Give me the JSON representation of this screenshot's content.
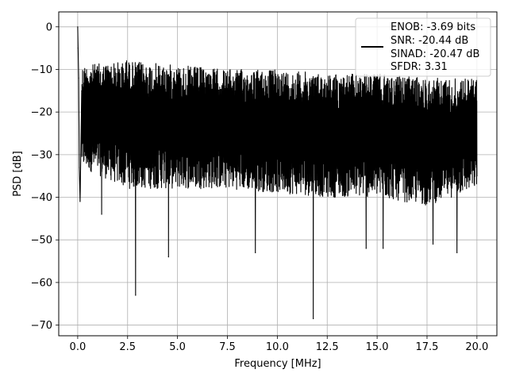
{
  "chart_data": {
    "type": "line",
    "xlabel": "Frequency [MHz]",
    "ylabel": "PSD [dB]",
    "xlim": [
      -0.95,
      21.0
    ],
    "ylim": [
      -72.5,
      3.5
    ],
    "xticks": [
      0.0,
      2.5,
      5.0,
      7.5,
      10.0,
      12.5,
      15.0,
      17.5,
      20.0
    ],
    "xtick_labels": [
      "0.0",
      "2.5",
      "5.0",
      "7.5",
      "10.0",
      "12.5",
      "15.0",
      "17.5",
      "20.0"
    ],
    "yticks": [
      0,
      -10,
      -20,
      -30,
      -40,
      -50,
      -60,
      -70
    ],
    "ytick_labels": [
      "0",
      "−10",
      "−20",
      "−30",
      "−40",
      "−50",
      "−60",
      "−70"
    ],
    "grid": true,
    "legend_position": "top-right",
    "series": [
      {
        "color": "#000000",
        "x": [
          0.0,
          0.02,
          0.05,
          0.08,
          0.12,
          0.2,
          0.4,
          1.2,
          2.45,
          2.9,
          4.55,
          8.9,
          11.8,
          14.45,
          15.3,
          17.8,
          19.0,
          20.0
        ],
        "y": [
          0.0,
          -5.0,
          -12.0,
          -33.0,
          -41.0,
          -15.0,
          -22.0,
          -44.0,
          -8.0,
          -63.0,
          -54.0,
          -53.0,
          -68.5,
          -52.0,
          -52.0,
          -51.0,
          -53.0,
          -35.0
        ],
        "band": {
          "upper": [
            [
              0.2,
              -9
            ],
            [
              2.5,
              -8
            ],
            [
              5.0,
              -9
            ],
            [
              7.5,
              -10
            ],
            [
              10.0,
              -10
            ],
            [
              12.5,
              -11
            ],
            [
              15.0,
              -11
            ],
            [
              17.5,
              -12
            ],
            [
              20.0,
              -12
            ]
          ],
          "lower": [
            [
              0.2,
              -33
            ],
            [
              2.5,
              -38
            ],
            [
              5.0,
              -38
            ],
            [
              7.5,
              -38
            ],
            [
              10.0,
              -39
            ],
            [
              12.5,
              -40
            ],
            [
              15.0,
              -40
            ],
            [
              17.5,
              -42
            ],
            [
              20.0,
              -38
            ]
          ]
        }
      }
    ],
    "legend": [
      {
        "text": "ENOB: -3.69 bits"
      },
      {
        "text": "SNR: -20.44 dB"
      },
      {
        "text": "SINAD: -20.47 dB"
      },
      {
        "text": "SFDR: 3.31"
      }
    ]
  }
}
